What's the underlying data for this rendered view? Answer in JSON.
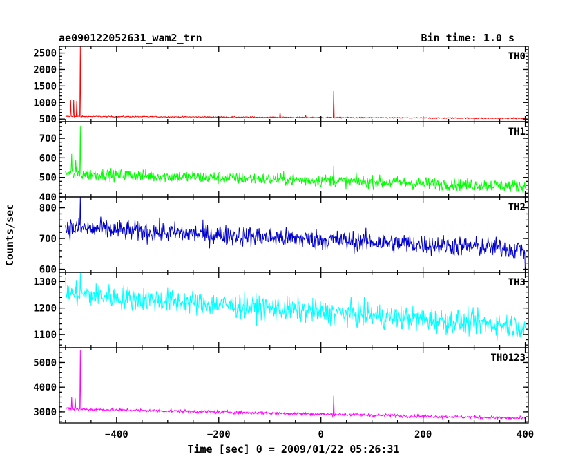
{
  "header": {
    "title": "ae090122052631_wam2_trn",
    "bin_time": "Bin time: 1.0 s"
  },
  "chart_data": {
    "type": "line",
    "xlabel": "Time [sec] 0 = 2009/01/22 05:26:31",
    "ylabel": "Counts/sec",
    "xlim": [
      -512,
      406
    ],
    "x_ticks": [
      -400,
      -200,
      0,
      200,
      400
    ],
    "x_tick_labels": [
      "−400",
      "−200",
      "0",
      "200",
      "400"
    ],
    "x_range_data": [
      -500,
      400
    ],
    "bin_time_s": 1.0,
    "panels": [
      {
        "name": "TH0",
        "color": "#ff0000",
        "ylim": [
          420,
          2700
        ],
        "yticks": [
          500,
          1000,
          1500,
          2000,
          2500
        ],
        "baseline_start": 580,
        "baseline_end": 520,
        "noise": 12,
        "spikes": [
          [
            -490,
            1080
          ],
          [
            -484,
            1070
          ],
          [
            -478,
            1050
          ],
          [
            -471,
            2700
          ],
          [
            -80,
            700
          ],
          [
            -30,
            620
          ],
          [
            25,
            1350
          ]
        ]
      },
      {
        "name": "TH1",
        "color": "#00ff00",
        "ylim": [
          400,
          785
        ],
        "yticks": [
          400,
          500,
          600,
          700
        ],
        "baseline_start": 520,
        "baseline_end": 455,
        "noise": 23,
        "spikes": [
          [
            -488,
            620
          ],
          [
            -480,
            590
          ],
          [
            -471,
            760
          ],
          [
            25,
            560
          ]
        ]
      },
      {
        "name": "TH2",
        "color": "#0000cc",
        "ylim": [
          590,
          835
        ],
        "yticks": [
          600,
          700,
          800
        ],
        "baseline_start": 735,
        "baseline_end": 665,
        "noise": 24,
        "spikes": [
          [
            -471,
            835
          ],
          [
            400,
            592
          ]
        ]
      },
      {
        "name": "TH3",
        "color": "#00ffff",
        "ylim": [
          1050,
          1335
        ],
        "yticks": [
          1100,
          1200,
          1300
        ],
        "baseline_start": 1255,
        "baseline_end": 1130,
        "noise": 33,
        "spikes": [
          [
            -471,
            1335
          ]
        ]
      },
      {
        "name": "TH0123",
        "color": "#ff00ff",
        "ylim": [
          2550,
          5600
        ],
        "yticks": [
          3000,
          4000,
          5000
        ],
        "baseline_start": 3120,
        "baseline_end": 2740,
        "noise": 45,
        "spikes": [
          [
            -488,
            3600
          ],
          [
            -481,
            3550
          ],
          [
            -471,
            5500
          ],
          [
            -80,
            2950
          ],
          [
            25,
            3650
          ]
        ]
      }
    ]
  }
}
